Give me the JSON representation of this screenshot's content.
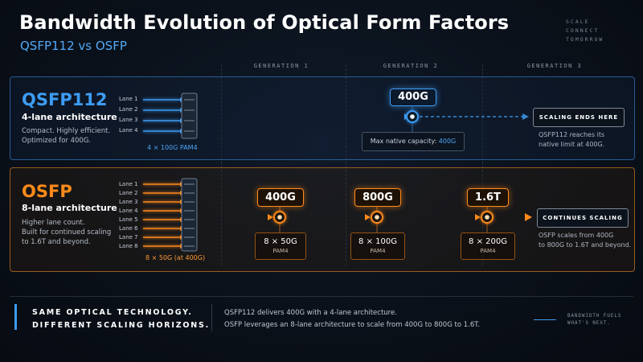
{
  "header": {
    "title": "Bandwidth Evolution of Optical Form Factors",
    "subtitle": "QSFP112 vs OSFP",
    "brand": [
      "SCALE",
      "CONNECT",
      "TOMORROW"
    ]
  },
  "generations": [
    "GENERATION 1",
    "GENERATION 2",
    "GENERATION 3"
  ],
  "qsfp": {
    "name": "QSFP112",
    "arch": "4-lane architecture",
    "desc": [
      "Compact. Highly efficient.",
      "Optimized for 400G."
    ],
    "lanes": [
      "Lane 1",
      "Lane 2",
      "Lane 3",
      "Lane 4"
    ],
    "lane_label": "4 × 100G PAM4",
    "capacity": "400G",
    "cap_prefix": "Max native capacity: ",
    "cap_value": "400G",
    "end_tag": "SCALING ENDS HERE",
    "end_note": [
      "QSFP112 reaches its",
      "native limit at 400G."
    ]
  },
  "osfp": {
    "name": "OSFP",
    "arch": "8-lane architecture",
    "desc": [
      "Higher lane count.",
      "Built for continued scaling",
      "to 1.6T and beyond."
    ],
    "lanes": [
      "Lane 1",
      "Lane 2",
      "Lane 3",
      "Lane 4",
      "Lane 5",
      "Lane 6",
      "Lane 7",
      "Lane 8"
    ],
    "lane_label": "8 × 50G (at 400G)",
    "stages": [
      {
        "value": "400G",
        "detail": "8 × 50G",
        "mod": "PAM4"
      },
      {
        "value": "800G",
        "detail": "8 × 100G",
        "mod": "PAM4"
      },
      {
        "value": "1.6T",
        "detail": "8 × 200G",
        "mod": "PAM4"
      }
    ],
    "end_tag": "CONTINUES SCALING",
    "end_note": [
      "OSFP scales from 400G",
      "to 800G to 1.6T and beyond."
    ]
  },
  "footer": {
    "headline": [
      "SAME OPTICAL TECHNOLOGY.",
      "DIFFERENT SCALING HORIZONS."
    ],
    "text": [
      "QSFP112 delivers 400G with a 4-lane architecture.",
      "OSFP leverages an 8-lane architecture to scale from 400G to 800G to 1.6T."
    ],
    "tagline": [
      "BANDWIDTH FUELS",
      "WHAT'S NEXT."
    ]
  },
  "colors": {
    "qsfp_accent": "#3d9cf3",
    "osfp_accent": "#ff8a1a",
    "background": "#0a1019"
  }
}
